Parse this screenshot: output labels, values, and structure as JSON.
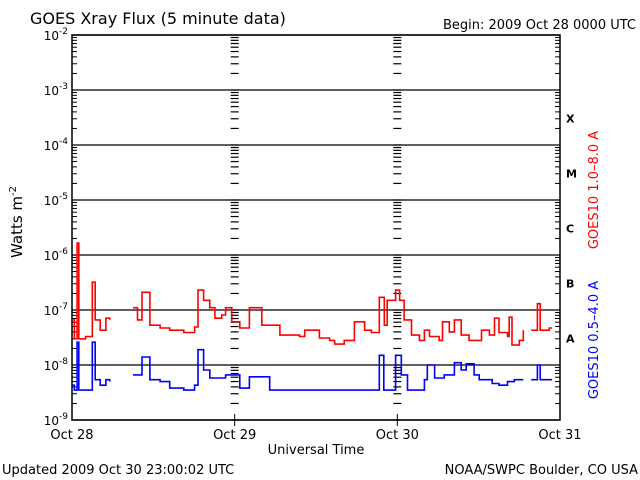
{
  "chart_data": {
    "type": "line",
    "title": "GOES Xray Flux (5 minute data)",
    "begin_label": "Begin:  2009 Oct 28 0000 UTC",
    "xlabel": "Universal Time",
    "ylabel": "Watts m",
    "ylabel_exponent": "-2",
    "y_scale": "log",
    "ylim": [
      1e-09,
      0.01
    ],
    "y_ticks": [
      {
        "base": "10",
        "exp": "-2",
        "value": 0.01
      },
      {
        "base": "10",
        "exp": "-3",
        "value": 0.001
      },
      {
        "base": "10",
        "exp": "-4",
        "value": 0.0001
      },
      {
        "base": "10",
        "exp": "-5",
        "value": 1e-05
      },
      {
        "base": "10",
        "exp": "-6",
        "value": 1e-06
      },
      {
        "base": "10",
        "exp": "-7",
        "value": 1e-07
      },
      {
        "base": "10",
        "exp": "-8",
        "value": 1e-08
      },
      {
        "base": "10",
        "exp": "-9",
        "value": 1e-09
      }
    ],
    "xlim": [
      "2009-10-28T00:00Z",
      "2009-10-31T00:00Z"
    ],
    "x_ticks": [
      {
        "label": "Oct 28",
        "time": "2009-10-28T00:00Z"
      },
      {
        "label": "Oct 29",
        "time": "2009-10-29T00:00Z"
      },
      {
        "label": "Oct 30",
        "time": "2009-10-30T00:00Z"
      },
      {
        "label": "Oct 31",
        "time": "2009-10-31T00:00Z"
      }
    ],
    "flare_classes": [
      {
        "label": "X",
        "value": 0.0001
      },
      {
        "label": "M",
        "value": 1e-05
      },
      {
        "label": "C",
        "value": 1e-06
      },
      {
        "label": "B",
        "value": 1e-07
      },
      {
        "label": "A",
        "value": 1e-08
      }
    ],
    "grid": "horizontal at decades",
    "series": [
      {
        "name": "GOES10 1.0–8.0 A",
        "color": "#ff0000",
        "points": [
          [
            "2009-10-28T00:00Z",
            6.6e-08
          ],
          [
            "2009-10-28T00:20Z",
            3e-08
          ],
          [
            "2009-10-28T00:45Z",
            1.65e-06
          ],
          [
            "2009-10-28T01:00Z",
            3e-08
          ],
          [
            "2009-10-28T02:00Z",
            3.3e-08
          ],
          [
            "2009-10-28T03:00Z",
            3.2e-07
          ],
          [
            "2009-10-28T03:25Z",
            6.6e-08
          ],
          [
            "2009-10-28T04:10Z",
            4.3e-08
          ],
          [
            "2009-10-28T05:00Z",
            7.1e-08
          ],
          [
            "2009-10-28T05:35Z",
            6.6e-08
          ],
          null,
          [
            "2009-10-28T09:00Z",
            1.1e-07
          ],
          [
            "2009-10-28T09:40Z",
            6.6e-08
          ],
          [
            "2009-10-28T10:20Z",
            2.1e-07
          ],
          [
            "2009-10-28T11:30Z",
            5.3e-08
          ],
          [
            "2009-10-28T13:00Z",
            4.7e-08
          ],
          [
            "2009-10-28T14:25Z",
            4.3e-08
          ],
          [
            "2009-10-28T16:30Z",
            3.9e-08
          ],
          [
            "2009-10-28T18:05Z",
            4.9e-08
          ],
          [
            "2009-10-28T18:35Z",
            2.3e-07
          ],
          [
            "2009-10-28T19:25Z",
            1.5e-07
          ],
          [
            "2009-10-28T20:20Z",
            1.1e-07
          ],
          [
            "2009-10-28T21:05Z",
            7.1e-08
          ],
          [
            "2009-10-28T22:05Z",
            8.1e-08
          ],
          [
            "2009-10-28T22:40Z",
            1.1e-07
          ],
          [
            "2009-10-28T23:35Z",
            6.1e-08
          ],
          [
            "2009-10-29T00:45Z",
            4.7e-08
          ],
          [
            "2009-10-29T02:10Z",
            1.1e-07
          ],
          [
            "2009-10-29T04:00Z",
            5.3e-08
          ],
          [
            "2009-10-29T06:40Z",
            3.5e-08
          ],
          [
            "2009-10-29T09:35Z",
            3.3e-08
          ],
          [
            "2009-10-29T10:20Z",
            4.3e-08
          ],
          [
            "2009-10-29T12:30Z",
            3.1e-08
          ],
          [
            "2009-10-29T14:00Z",
            2.8e-08
          ],
          [
            "2009-10-29T14:45Z",
            2.4e-08
          ],
          [
            "2009-10-29T16:10Z",
            2.8e-08
          ],
          [
            "2009-10-29T17:40Z",
            6.1e-08
          ],
          [
            "2009-10-29T19:10Z",
            4.3e-08
          ],
          [
            "2009-10-29T20:10Z",
            3.9e-08
          ],
          [
            "2009-10-29T21:20Z",
            1.7e-07
          ],
          [
            "2009-10-29T22:05Z",
            5.3e-08
          ],
          [
            "2009-10-29T22:30Z",
            1.5e-07
          ],
          [
            "2009-10-29T23:45Z",
            2.3e-07
          ],
          [
            "2009-10-30T00:20Z",
            1.5e-07
          ],
          [
            "2009-10-30T01:00Z",
            6.6e-08
          ],
          [
            "2009-10-30T02:05Z",
            3.5e-08
          ],
          [
            "2009-10-30T03:15Z",
            2.8e-08
          ],
          [
            "2009-10-30T04:00Z",
            4.3e-08
          ],
          [
            "2009-10-30T04:45Z",
            3.3e-08
          ],
          [
            "2009-10-30T06:10Z",
            2.8e-08
          ],
          [
            "2009-10-30T06:40Z",
            6.1e-08
          ],
          [
            "2009-10-30T07:40Z",
            4e-08
          ],
          [
            "2009-10-30T08:25Z",
            6.6e-08
          ],
          [
            "2009-10-30T09:25Z",
            3.5e-08
          ],
          [
            "2009-10-30T10:35Z",
            2.8e-08
          ],
          [
            "2009-10-30T11:40Z",
            2.8e-08
          ],
          [
            "2009-10-30T12:25Z",
            4.3e-08
          ],
          [
            "2009-10-30T13:35Z",
            3.5e-08
          ],
          [
            "2009-10-30T14:20Z",
            7.1e-08
          ],
          [
            "2009-10-30T15:00Z",
            3.9e-08
          ],
          [
            "2009-10-30T16:15Z",
            3.3e-08
          ],
          [
            "2009-10-30T16:30Z",
            7.4e-08
          ],
          [
            "2009-10-30T16:55Z",
            2.3e-08
          ],
          [
            "2009-10-30T18:00Z",
            2.8e-08
          ],
          [
            "2009-10-30T18:35Z",
            4.3e-08
          ],
          null,
          [
            "2009-10-30T19:45Z",
            4.3e-08
          ],
          [
            "2009-10-30T20:40Z",
            1.3e-07
          ],
          [
            "2009-10-30T21:05Z",
            4.3e-08
          ],
          [
            "2009-10-30T22:25Z",
            4.7e-08
          ],
          [
            "2009-10-30T22:50Z",
            4.7e-08
          ]
        ]
      },
      {
        "name": "GOES10 0.5–4.0 A",
        "color": "#0000ff",
        "points": [
          [
            "2009-10-28T00:00Z",
            4.3e-09
          ],
          [
            "2009-10-28T00:20Z",
            3.5e-09
          ],
          [
            "2009-10-28T00:45Z",
            2.6e-08
          ],
          [
            "2009-10-28T01:00Z",
            3.5e-09
          ],
          [
            "2009-10-28T02:00Z",
            3.5e-09
          ],
          [
            "2009-10-28T03:00Z",
            2.6e-08
          ],
          [
            "2009-10-28T03:25Z",
            5.4e-09
          ],
          [
            "2009-10-28T04:10Z",
            4.3e-09
          ],
          [
            "2009-10-28T05:00Z",
            5.4e-09
          ],
          [
            "2009-10-28T05:35Z",
            5e-09
          ],
          null,
          [
            "2009-10-28T09:00Z",
            6.6e-09
          ],
          [
            "2009-10-28T10:20Z",
            1.4e-08
          ],
          [
            "2009-10-28T11:30Z",
            5.4e-09
          ],
          [
            "2009-10-28T13:00Z",
            5e-09
          ],
          [
            "2009-10-28T14:25Z",
            3.8e-09
          ],
          [
            "2009-10-28T16:30Z",
            3.5e-09
          ],
          [
            "2009-10-28T18:05Z",
            4.3e-09
          ],
          [
            "2009-10-28T18:35Z",
            1.9e-08
          ],
          [
            "2009-10-28T19:25Z",
            8.1e-09
          ],
          [
            "2009-10-28T20:20Z",
            5.8e-09
          ],
          [
            "2009-10-28T22:40Z",
            6.6e-09
          ],
          [
            "2009-10-29T00:45Z",
            3.8e-09
          ],
          [
            "2009-10-29T02:10Z",
            6.1e-09
          ],
          [
            "2009-10-29T05:10Z",
            3.5e-09
          ],
          [
            "2009-10-29T14:00Z",
            3.5e-09
          ],
          [
            "2009-10-29T21:00Z",
            3.5e-09
          ],
          [
            "2009-10-29T21:20Z",
            1.5e-08
          ],
          [
            "2009-10-29T22:00Z",
            3.5e-09
          ],
          [
            "2009-10-29T23:45Z",
            1.5e-08
          ],
          [
            "2009-10-30T00:35Z",
            6.6e-09
          ],
          [
            "2009-10-30T01:30Z",
            3.5e-09
          ],
          [
            "2009-10-30T03:30Z",
            3.5e-09
          ],
          [
            "2009-10-30T04:00Z",
            5.4e-09
          ],
          [
            "2009-10-30T04:25Z",
            1e-08
          ],
          [
            "2009-10-30T05:30Z",
            5.8e-09
          ],
          [
            "2009-10-30T06:55Z",
            6.6e-09
          ],
          [
            "2009-10-30T08:25Z",
            1.1e-08
          ],
          [
            "2009-10-30T09:25Z",
            8.1e-09
          ],
          [
            "2009-10-30T10:10Z",
            1.05e-08
          ],
          [
            "2009-10-30T11:20Z",
            6.6e-09
          ],
          [
            "2009-10-30T12:05Z",
            5.4e-09
          ],
          [
            "2009-10-30T14:00Z",
            4.6e-09
          ],
          [
            "2009-10-30T15:00Z",
            4.3e-09
          ],
          [
            "2009-10-30T16:15Z",
            5e-09
          ],
          [
            "2009-10-30T17:15Z",
            5.4e-09
          ],
          [
            "2009-10-30T18:35Z",
            5.4e-09
          ],
          null,
          [
            "2009-10-30T19:45Z",
            5.4e-09
          ],
          [
            "2009-10-30T20:40Z",
            1e-08
          ],
          [
            "2009-10-30T21:05Z",
            5.4e-09
          ],
          [
            "2009-10-30T22:50Z",
            5.4e-09
          ]
        ]
      }
    ]
  },
  "footer": {
    "updated": "Updated 2009 Oct 30 23:00:02 UTC",
    "source": "NOAA/SWPC Boulder, CO USA"
  }
}
